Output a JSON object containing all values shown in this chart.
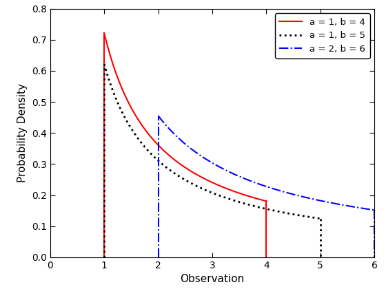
{
  "series": [
    {
      "a": 1,
      "b": 4,
      "label": "a = 1, b = 4",
      "color": "#FF0000",
      "linestyle": "solid",
      "linewidth": 1.5
    },
    {
      "a": 1,
      "b": 5,
      "label": "a = 1, b = 5",
      "color": "#000000",
      "linestyle": "dotted",
      "linewidth": 2.0
    },
    {
      "a": 2,
      "b": 6,
      "label": "a = 2, b = 6",
      "color": "#0000FF",
      "linestyle": "dashdot",
      "linewidth": 1.5
    }
  ],
  "xlim": [
    0,
    6
  ],
  "ylim": [
    0,
    0.8
  ],
  "xlabel": "Observation",
  "ylabel": "Probability Density",
  "xticks": [
    0,
    1,
    2,
    3,
    4,
    5,
    6
  ],
  "yticks": [
    0.0,
    0.1,
    0.2,
    0.3,
    0.4,
    0.5,
    0.6,
    0.7,
    0.8
  ],
  "legend_loc": "upper right",
  "figsize": [
    5.6,
    4.2
  ],
  "dpi": 100,
  "background_color": "#ffffff"
}
